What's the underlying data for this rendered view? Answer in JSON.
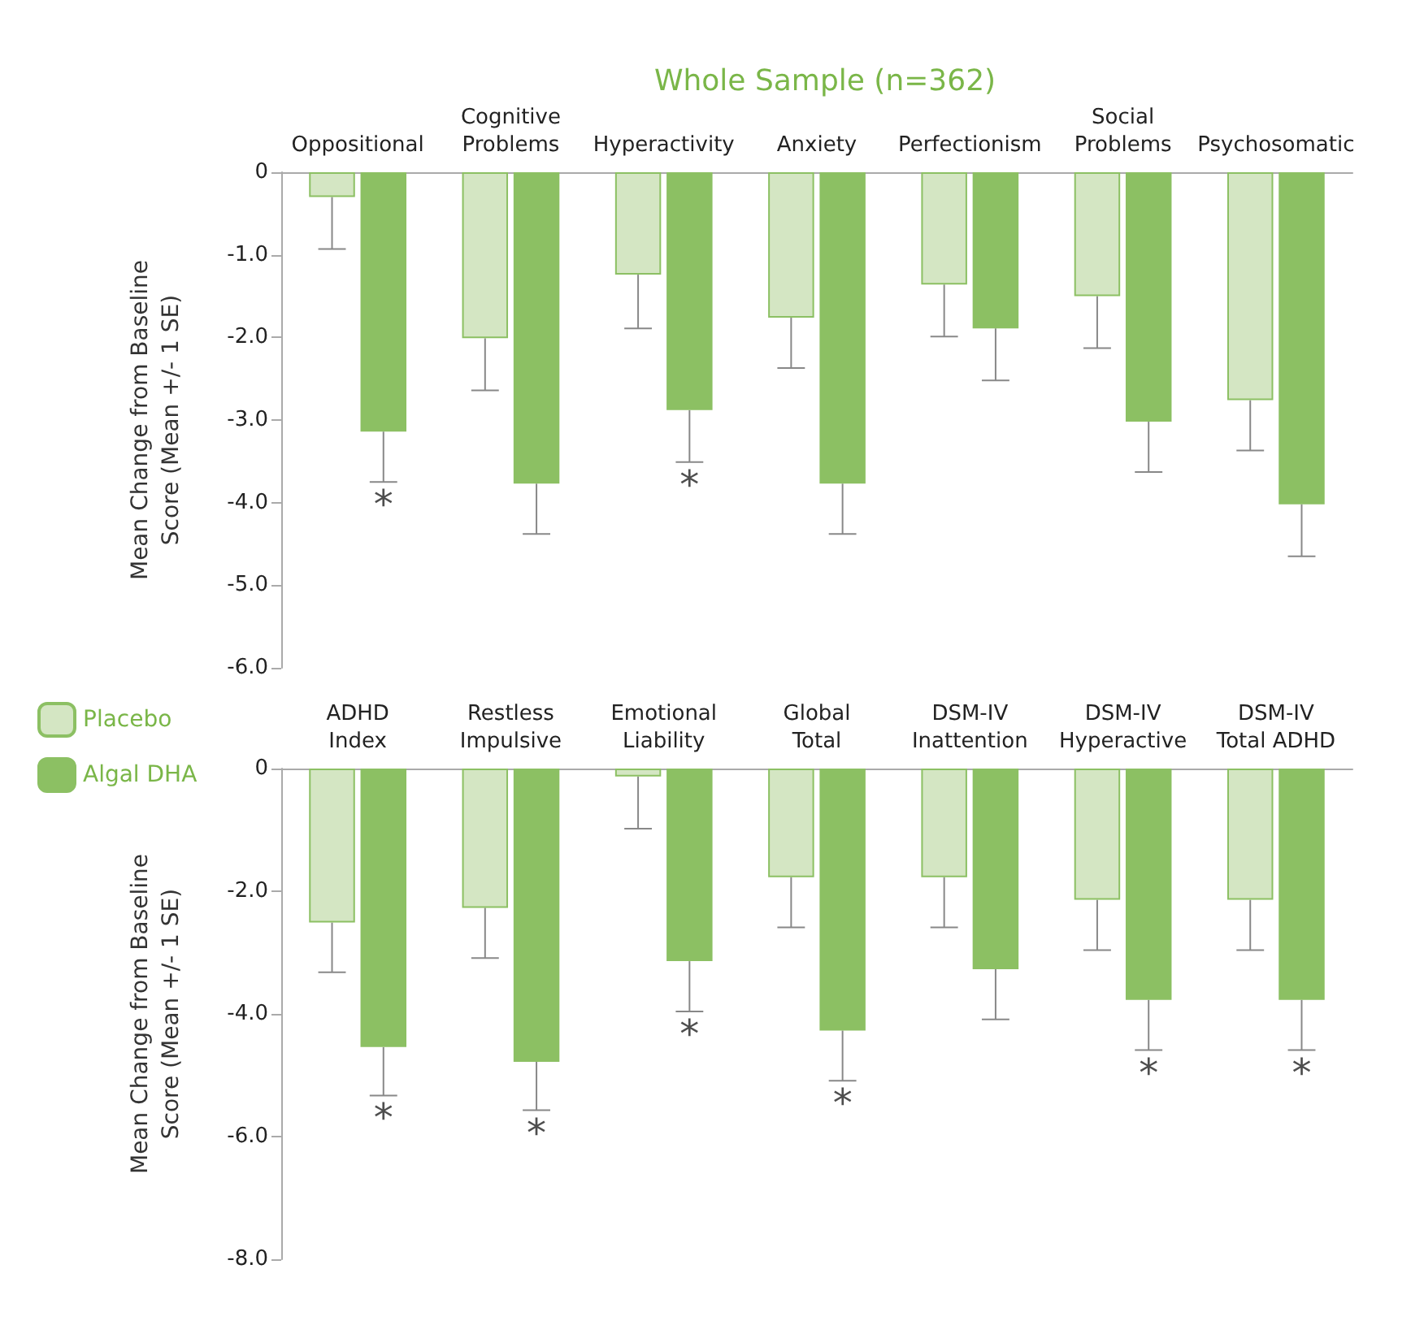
{
  "chart_data": [
    {
      "type": "bar",
      "title": "Whole Sample (n=362)",
      "ylabel": "Mean Change from Baseline\nScore (Mean +/- 1 SE)",
      "categories": [
        "Oppositional",
        "Cognitive\nProblems",
        "Hyperactivity",
        "Anxiety",
        "Perfectionism",
        "Social\nProblems",
        "Psychosomatic"
      ],
      "series": [
        {
          "color": "#d4e6c3",
          "values": [
            -0.3,
            -2.01,
            -1.24,
            -1.76,
            -1.36,
            -1.5,
            -2.76
          ],
          "errors": [
            [
              -0.93,
              -0.3
            ],
            [
              -2.64,
              -2.01
            ],
            [
              -1.89,
              -1.24
            ],
            [
              -2.37,
              -1.76
            ],
            [
              -1.99,
              -1.36
            ],
            [
              -2.13,
              -1.5
            ],
            [
              -3.37,
              -2.76
            ]
          ]
        },
        {
          "color": "#8cc063",
          "values": [
            -3.14,
            -3.77,
            -2.88,
            -3.77,
            -1.89,
            -3.02,
            -4.02
          ],
          "errors": [
            [
              -3.75,
              -3.14
            ],
            [
              -4.38,
              -3.77
            ],
            [
              -3.51,
              -2.88
            ],
            [
              -4.38,
              -3.77
            ],
            [
              -2.52,
              -1.89
            ],
            [
              -3.63,
              -3.02
            ],
            [
              -4.65,
              -4.02
            ]
          ]
        }
      ],
      "ylim": [
        -6,
        0
      ],
      "yticks": [
        {
          "value": -6,
          "label": "-6.0"
        },
        {
          "value": -5,
          "label": "-5.0"
        },
        {
          "value": -4,
          "label": "-4.0"
        },
        {
          "value": -3,
          "label": "-3.0"
        },
        {
          "value": -2,
          "label": "-2.0"
        },
        {
          "value": -1,
          "label": "-1.0"
        },
        0
      ],
      "annotations": [
        {
          "text": "*",
          "x": "Oppositional",
          "y": -3.14
        },
        {
          "text": "*",
          "x": "Hyperactivity",
          "y": -2.88
        }
      ],
      "grid": false,
      "legend": false
    },
    {
      "type": "bar",
      "ylabel": "Mean Change from Baseline\nScore (Mean +/- 1 SE)",
      "categories": [
        "ADHD\nIndex",
        "Restless\nImpulsive",
        "Emotional\nLiability",
        "Global\nTotal",
        "DSM-IV\nInattention",
        "DSM-IV\nHyperactive",
        "DSM-IV\nTotal ADHD"
      ],
      "series": [
        {
          "name": "Placebo",
          "color": "#d4e6c3",
          "values": [
            -2.51,
            -2.27,
            -0.13,
            -1.77,
            -1.77,
            -2.14,
            -2.14
          ],
          "errors": [
            [
              -3.32,
              -2.51
            ],
            [
              -3.09,
              -2.27
            ],
            [
              -0.98,
              -0.13
            ],
            [
              -2.59,
              -1.77
            ],
            [
              -2.59,
              -1.77
            ],
            [
              -2.96,
              -2.14
            ],
            [
              -2.96,
              -2.14
            ]
          ]
        },
        {
          "name": "Algal DHA",
          "color": "#8cc063",
          "values": [
            -4.54,
            -4.78,
            -3.14,
            -4.27,
            -3.27,
            -3.77,
            -3.77
          ],
          "errors": [
            [
              -5.33,
              -4.54
            ],
            [
              -5.57,
              -4.78
            ],
            [
              -3.96,
              -3.14
            ],
            [
              -5.09,
              -4.27
            ],
            [
              -4.09,
              -3.27
            ],
            [
              -4.59,
              -3.77
            ],
            [
              -4.59,
              -3.77
            ]
          ]
        }
      ],
      "ylim": [
        -8,
        0
      ],
      "yticks": [
        {
          "value": -8,
          "label": "-8.0"
        },
        {
          "value": -6,
          "label": "-6.0"
        },
        {
          "value": -4,
          "label": "-4.0"
        },
        {
          "value": -2,
          "label": "-2.0"
        },
        0
      ],
      "annotations": [
        {
          "text": "*",
          "x": "ADHD\nIndex",
          "y": -4.54
        },
        {
          "text": "*",
          "x": "Restless\nImpulsive",
          "y": -4.78
        },
        {
          "text": "*",
          "x": "Emotional\nLiability",
          "y": -3.14
        },
        {
          "text": "*",
          "x": "Global\nTotal",
          "y": -4.27
        },
        {
          "text": "*",
          "x": "DSM-IV\nHyperactive",
          "y": -3.77
        },
        {
          "text": "*",
          "x": "DSM-IV\nTotal ADHD",
          "y": -3.77
        }
      ],
      "grid": false,
      "legend": "top left"
    }
  ]
}
